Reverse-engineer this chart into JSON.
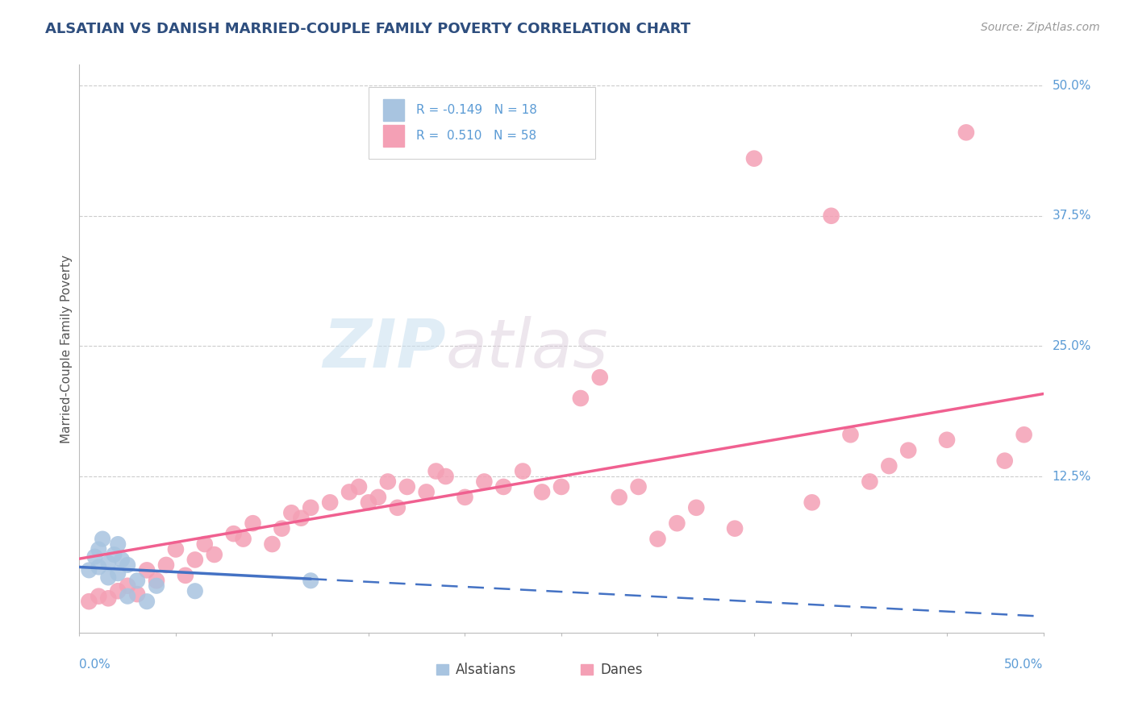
{
  "title": "ALSATIAN VS DANISH MARRIED-COUPLE FAMILY POVERTY CORRELATION CHART",
  "source": "Source: ZipAtlas.com",
  "ylabel": "Married-Couple Family Poverty",
  "ytick_labels": [
    "50.0%",
    "37.5%",
    "25.0%",
    "12.5%"
  ],
  "ytick_values": [
    0.5,
    0.375,
    0.25,
    0.125
  ],
  "xlim": [
    0.0,
    0.5
  ],
  "ylim": [
    -0.025,
    0.52
  ],
  "alsatian_color": "#a8c4e0",
  "dane_color": "#f4a0b5",
  "alsatian_line_color": "#4472c4",
  "dane_line_color": "#f06090",
  "alsatian_R": -0.149,
  "dane_R": 0.51,
  "background_color": "#ffffff",
  "legend_text_color": "#5b9bd5",
  "alsatian_x": [
    0.005,
    0.008,
    0.01,
    0.01,
    0.012,
    0.015,
    0.015,
    0.018,
    0.02,
    0.02,
    0.022,
    0.025,
    0.025,
    0.03,
    0.035,
    0.04,
    0.06,
    0.12
  ],
  "alsatian_y": [
    0.035,
    0.048,
    0.055,
    0.038,
    0.065,
    0.042,
    0.028,
    0.05,
    0.06,
    0.032,
    0.045,
    0.04,
    0.01,
    0.025,
    0.005,
    0.02,
    0.015,
    0.025
  ],
  "dane_x": [
    0.005,
    0.01,
    0.015,
    0.02,
    0.025,
    0.03,
    0.035,
    0.04,
    0.045,
    0.05,
    0.055,
    0.06,
    0.065,
    0.07,
    0.08,
    0.085,
    0.09,
    0.1,
    0.105,
    0.11,
    0.115,
    0.12,
    0.13,
    0.14,
    0.145,
    0.15,
    0.155,
    0.16,
    0.165,
    0.17,
    0.18,
    0.185,
    0.19,
    0.2,
    0.21,
    0.22,
    0.23,
    0.24,
    0.25,
    0.26,
    0.27,
    0.28,
    0.29,
    0.3,
    0.31,
    0.32,
    0.34,
    0.35,
    0.38,
    0.39,
    0.4,
    0.41,
    0.42,
    0.43,
    0.45,
    0.46,
    0.48,
    0.49
  ],
  "dane_y": [
    0.005,
    0.01,
    0.008,
    0.015,
    0.02,
    0.012,
    0.035,
    0.025,
    0.04,
    0.055,
    0.03,
    0.045,
    0.06,
    0.05,
    0.07,
    0.065,
    0.08,
    0.06,
    0.075,
    0.09,
    0.085,
    0.095,
    0.1,
    0.11,
    0.115,
    0.1,
    0.105,
    0.12,
    0.095,
    0.115,
    0.11,
    0.13,
    0.125,
    0.105,
    0.12,
    0.115,
    0.13,
    0.11,
    0.115,
    0.2,
    0.22,
    0.105,
    0.115,
    0.065,
    0.08,
    0.095,
    0.075,
    0.43,
    0.1,
    0.375,
    0.165,
    0.12,
    0.135,
    0.15,
    0.16,
    0.455,
    0.14,
    0.165
  ]
}
